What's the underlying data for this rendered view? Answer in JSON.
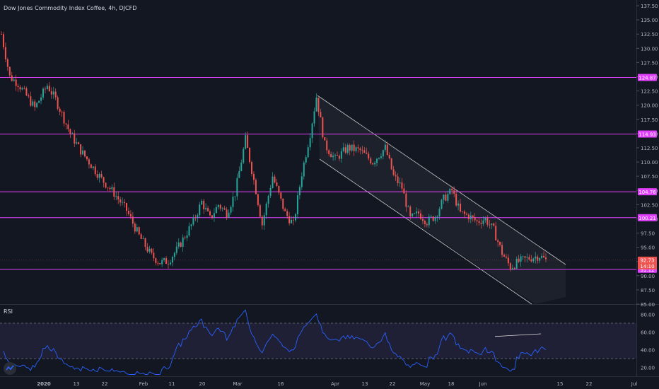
{
  "header": {
    "title": "Dow Jones Commodity Index Coffee, 4h, DJCFD"
  },
  "rsi_panel": {
    "label": "RSI"
  },
  "colors": {
    "background": "#131722",
    "up": "#26a69a",
    "down": "#ef5350",
    "level_line": "#e040fb",
    "rsi_line": "#2962ff",
    "rsi_band": "#7e57c2",
    "channel": "#c8c8c8",
    "axis_text": "#b2b5be"
  },
  "chart_data": [
    {
      "type": "candlestick",
      "title": "Dow Jones Commodity Index Coffee, 4h, DJCFD",
      "x_tick_labels": [
        "2020",
        "13",
        "22",
        "Feb",
        "11",
        "20",
        "Mar",
        "16",
        "Apr",
        "13",
        "22",
        "May",
        "18",
        "Jun",
        "15",
        "22",
        "Jul"
      ],
      "y_tick_labels": [
        "137.50",
        "135.00",
        "132.50",
        "130.00",
        "127.50",
        "125.00",
        "122.50",
        "120.00",
        "117.50",
        "115.00",
        "112.50",
        "110.00",
        "107.50",
        "105.00",
        "102.50",
        "100.00",
        "97.50",
        "95.00",
        "92.50",
        "90.00",
        "87.50",
        "85.00"
      ],
      "ylim": [
        85,
        138.5
      ],
      "price_path": [
        [
          0,
          132.5
        ],
        [
          4,
          125.0
        ],
        [
          8,
          123.8
        ],
        [
          16,
          119.5
        ],
        [
          22,
          123.5
        ],
        [
          26,
          121.0
        ],
        [
          33,
          115.0
        ],
        [
          38,
          112.0
        ],
        [
          48,
          107.0
        ],
        [
          54,
          104.5
        ],
        [
          60,
          101.5
        ],
        [
          66,
          97.0
        ],
        [
          72,
          93.5
        ],
        [
          76,
          92.3
        ],
        [
          80,
          92.6
        ],
        [
          84,
          94.5
        ],
        [
          92,
          99.5
        ],
        [
          96,
          103.0
        ],
        [
          100,
          100.0
        ],
        [
          104,
          102.5
        ],
        [
          108,
          101.0
        ],
        [
          112,
          104.5
        ],
        [
          117,
          114.0
        ],
        [
          122,
          105.0
        ],
        [
          125,
          99.0
        ],
        [
          130,
          107.5
        ],
        [
          136,
          101.0
        ],
        [
          140,
          99.0
        ],
        [
          144,
          108.0
        ],
        [
          148,
          115.0
        ],
        [
          151,
          121.5
        ],
        [
          155,
          113.0
        ],
        [
          160,
          110.5
        ],
        [
          166,
          112.5
        ],
        [
          172,
          112.0
        ],
        [
          178,
          110.0
        ],
        [
          184,
          112.5
        ],
        [
          188,
          107.5
        ],
        [
          192,
          105.5
        ],
        [
          196,
          100.0
        ],
        [
          200,
          101.0
        ],
        [
          204,
          99.5
        ],
        [
          208,
          100.5
        ],
        [
          212,
          103.5
        ],
        [
          216,
          105.0
        ],
        [
          220,
          101.0
        ],
        [
          224,
          100.5
        ],
        [
          228,
          99.5
        ],
        [
          232,
          100.0
        ],
        [
          236,
          98.0
        ],
        [
          240,
          94.0
        ],
        [
          244,
          91.5
        ],
        [
          248,
          92.5
        ],
        [
          252,
          93.0
        ],
        [
          258,
          93.5
        ],
        [
          261,
          92.7
        ]
      ],
      "price_levels": [
        "124.87",
        "114.93",
        "104.76",
        "100.21",
        "91.12"
      ],
      "current_price": "92.73",
      "countdown": "14:10"
    },
    {
      "type": "line",
      "title": "RSI",
      "y_tick_labels": [
        "80.00",
        "60.00",
        "40.00",
        "20.00"
      ],
      "ylim": [
        10,
        90
      ],
      "band": [
        30,
        70
      ],
      "series": [
        {
          "values": []
        }
      ]
    }
  ]
}
